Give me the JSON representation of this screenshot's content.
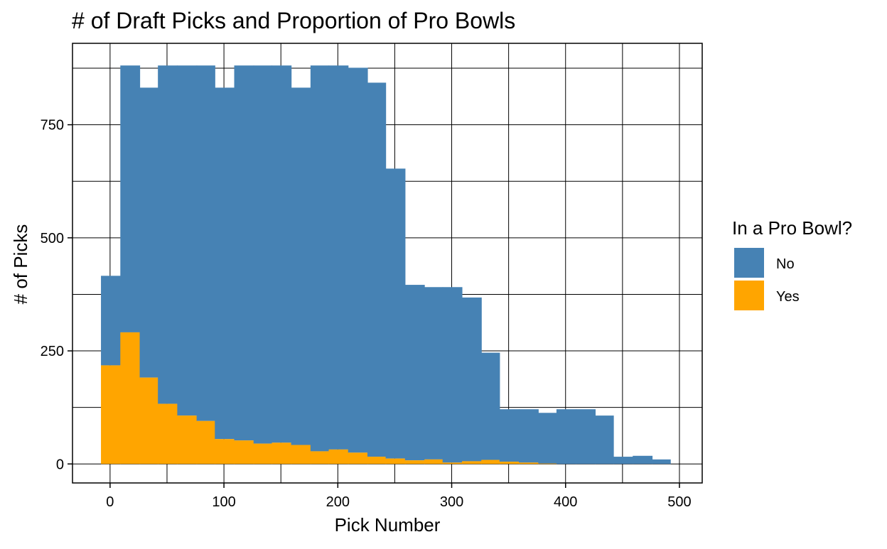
{
  "chart_data": {
    "type": "histogram",
    "stacked": true,
    "title": "# of Draft Picks and Proportion of Pro Bowls",
    "xlabel": "Pick Number",
    "ylabel": "# of Picks",
    "xlim": [
      -33,
      520
    ],
    "ylim": [
      -42,
      930
    ],
    "x_ticks": [
      0,
      100,
      200,
      300,
      400,
      500
    ],
    "y_ticks": [
      0,
      250,
      500,
      750
    ],
    "grid": true,
    "legend": {
      "title": "In a Pro Bowl?",
      "position": "right",
      "items": [
        {
          "label": "No",
          "color": "#4682B4"
        },
        {
          "label": "Yes",
          "color": "#FFA500"
        }
      ]
    },
    "bins": [
      {
        "x0": -8,
        "x1": 9,
        "total": 416,
        "yes": 218
      },
      {
        "x0": 9,
        "x1": 26,
        "total": 881,
        "yes": 291
      },
      {
        "x0": 26,
        "x1": 42,
        "total": 832,
        "yes": 191
      },
      {
        "x0": 42,
        "x1": 59,
        "total": 881,
        "yes": 133
      },
      {
        "x0": 59,
        "x1": 76,
        "total": 881,
        "yes": 107
      },
      {
        "x0": 76,
        "x1": 92,
        "total": 881,
        "yes": 95
      },
      {
        "x0": 92,
        "x1": 109,
        "total": 832,
        "yes": 55
      },
      {
        "x0": 109,
        "x1": 126,
        "total": 881,
        "yes": 52
      },
      {
        "x0": 126,
        "x1": 142,
        "total": 881,
        "yes": 45
      },
      {
        "x0": 142,
        "x1": 159,
        "total": 881,
        "yes": 47
      },
      {
        "x0": 159,
        "x1": 176,
        "total": 832,
        "yes": 42
      },
      {
        "x0": 176,
        "x1": 192,
        "total": 881,
        "yes": 28
      },
      {
        "x0": 192,
        "x1": 209,
        "total": 881,
        "yes": 32
      },
      {
        "x0": 209,
        "x1": 226,
        "total": 876,
        "yes": 25
      },
      {
        "x0": 226,
        "x1": 242,
        "total": 843,
        "yes": 16
      },
      {
        "x0": 242,
        "x1": 259,
        "total": 653,
        "yes": 12
      },
      {
        "x0": 259,
        "x1": 276,
        "total": 396,
        "yes": 8
      },
      {
        "x0": 276,
        "x1": 292,
        "total": 391,
        "yes": 10
      },
      {
        "x0": 292,
        "x1": 309,
        "total": 391,
        "yes": 3
      },
      {
        "x0": 309,
        "x1": 326,
        "total": 368,
        "yes": 6
      },
      {
        "x0": 326,
        "x1": 342,
        "total": 246,
        "yes": 9
      },
      {
        "x0": 342,
        "x1": 359,
        "total": 121,
        "yes": 5
      },
      {
        "x0": 359,
        "x1": 376,
        "total": 121,
        "yes": 3
      },
      {
        "x0": 376,
        "x1": 392,
        "total": 113,
        "yes": 1
      },
      {
        "x0": 392,
        "x1": 409,
        "total": 121,
        "yes": 0
      },
      {
        "x0": 409,
        "x1": 426,
        "total": 121,
        "yes": 0
      },
      {
        "x0": 426,
        "x1": 442,
        "total": 107,
        "yes": 0
      },
      {
        "x0": 442,
        "x1": 459,
        "total": 16,
        "yes": 0
      },
      {
        "x0": 459,
        "x1": 476,
        "total": 18,
        "yes": 0
      },
      {
        "x0": 476,
        "x1": 492,
        "total": 10,
        "yes": 0
      }
    ]
  }
}
